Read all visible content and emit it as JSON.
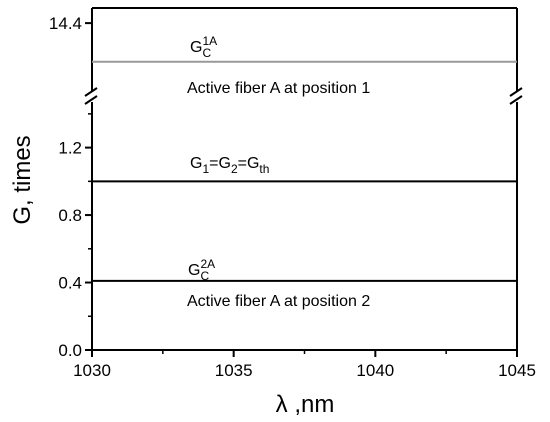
{
  "chart_data": {
    "type": "line",
    "xlabel": "λ ,nm",
    "ylabel": "G, times",
    "xlim": [
      1030,
      1045
    ],
    "xticks": [
      1030,
      1035,
      1040,
      1045
    ],
    "xminor_ticks": [
      1032.5,
      1037.5,
      1042.5
    ],
    "y_segments": [
      {
        "ylim": [
          0,
          1.5
        ],
        "yticks": [
          {
            "value": 0,
            "label": "0.0"
          },
          0.4,
          0.8,
          1.2
        ],
        "yminor_ticks": [
          0.2,
          0.6,
          1.0,
          1.4
        ]
      },
      {
        "ylim": [
          13.96,
          14.49
        ],
        "yticks": [
          14.4
        ],
        "yminor_ticks": []
      }
    ],
    "series": [
      {
        "x": [
          1030,
          1045
        ],
        "values": [
          14.17,
          14.17
        ],
        "color": "#999999",
        "segment": 1
      },
      {
        "x": [
          1030,
          1045
        ],
        "values": [
          1.0,
          1.0
        ],
        "color": "#000000",
        "segment": 0
      },
      {
        "x": [
          1030,
          1045
        ],
        "values": [
          0.41,
          0.41
        ],
        "color": "#000000",
        "segment": 0
      }
    ],
    "annotations": [
      {
        "parts": [
          [
            "G",
            ""
          ],
          [
            "C",
            "sub"
          ],
          [
            "1A",
            "sup"
          ]
        ]
      },
      {
        "parts": [
          [
            "Active fiber A at position 1",
            ""
          ]
        ]
      },
      {
        "parts": [
          [
            "G",
            ""
          ],
          [
            "1",
            "sub"
          ],
          [
            "=G",
            ""
          ],
          [
            "2",
            "sub"
          ],
          [
            "=G",
            ""
          ],
          [
            "th",
            "sub"
          ]
        ]
      },
      {
        "parts": [
          [
            "G",
            ""
          ],
          [
            "C",
            "sub"
          ],
          [
            "2A",
            "sup"
          ]
        ]
      },
      {
        "parts": [
          [
            "Active fiber A at position 2",
            ""
          ]
        ]
      }
    ]
  }
}
